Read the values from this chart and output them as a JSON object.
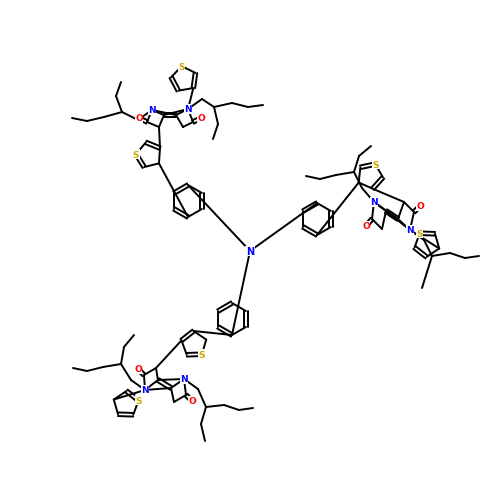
{
  "bg_color": "#ffffff",
  "N_color": "#0000ff",
  "O_color": "#ff0000",
  "S_color": "#ccaa00",
  "line_color": "#000000",
  "lw": 1.4,
  "fs": 6.5
}
